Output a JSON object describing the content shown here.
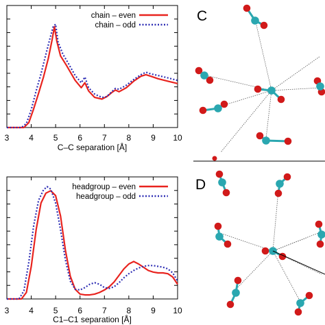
{
  "figure": {
    "panels": {
      "C": {
        "letter": "C"
      },
      "D": {
        "letter": "D"
      }
    },
    "colors": {
      "even": "#e8231e",
      "odd": "#2d2db4",
      "oxygen": "#d11a1a",
      "carbon": "#2aa7b0",
      "bond": "#555555"
    }
  },
  "chart_data": [
    {
      "type": "line",
      "xlabel": "C–C separation [Å]",
      "ylabel": "",
      "xlim": [
        3,
        10
      ],
      "x_ticks": [
        "3",
        "4",
        "5",
        "6",
        "7",
        "8",
        "9",
        "10"
      ],
      "ylim": [
        0,
        1.5
      ],
      "grid": false,
      "legend_position": "top-right",
      "series": [
        {
          "name": "chain – even",
          "style": "solid",
          "x": [
            3.0,
            3.7,
            3.9,
            4.1,
            4.3,
            4.5,
            4.7,
            4.85,
            4.95,
            5.05,
            5.2,
            5.45,
            5.8,
            6.05,
            6.2,
            6.35,
            6.6,
            6.9,
            7.1,
            7.3,
            7.45,
            7.6,
            7.9,
            8.2,
            8.5,
            8.7,
            8.9,
            9.2,
            9.6,
            10.0
          ],
          "y": [
            0.0,
            0.0,
            0.06,
            0.23,
            0.42,
            0.62,
            0.85,
            1.07,
            1.24,
            1.06,
            0.88,
            0.76,
            0.58,
            0.49,
            0.55,
            0.45,
            0.37,
            0.35,
            0.38,
            0.43,
            0.46,
            0.44,
            0.49,
            0.57,
            0.63,
            0.65,
            0.63,
            0.6,
            0.57,
            0.54
          ]
        },
        {
          "name": "chain – odd",
          "style": "dotted",
          "x": [
            3.0,
            3.6,
            3.8,
            4.0,
            4.2,
            4.4,
            4.6,
            4.8,
            4.9,
            5.0,
            5.1,
            5.3,
            5.5,
            5.8,
            6.05,
            6.2,
            6.35,
            6.6,
            6.9,
            7.1,
            7.3,
            7.45,
            7.6,
            7.9,
            8.2,
            8.5,
            8.7,
            8.9,
            9.2,
            9.6,
            10.0
          ],
          "y": [
            0.0,
            0.0,
            0.05,
            0.22,
            0.45,
            0.66,
            0.9,
            1.13,
            1.24,
            1.27,
            1.05,
            0.9,
            0.8,
            0.64,
            0.55,
            0.62,
            0.49,
            0.41,
            0.37,
            0.38,
            0.44,
            0.48,
            0.47,
            0.52,
            0.59,
            0.65,
            0.68,
            0.66,
            0.64,
            0.61,
            0.58
          ]
        }
      ]
    },
    {
      "type": "line",
      "xlabel": "C1–C1 separation [Å]",
      "ylabel": "",
      "xlim": [
        3,
        10
      ],
      "x_ticks": [
        "3",
        "4",
        "5",
        "6",
        "7",
        "8",
        "9",
        "10"
      ],
      "ylim": [
        0,
        1.5
      ],
      "grid": false,
      "legend_position": "top-right",
      "series": [
        {
          "name": "headgroup – even",
          "style": "solid",
          "x": [
            3.0,
            3.6,
            3.8,
            4.0,
            4.2,
            4.4,
            4.6,
            4.8,
            5.0,
            5.2,
            5.4,
            5.6,
            5.8,
            6.0,
            6.2,
            6.4,
            6.6,
            6.8,
            7.0,
            7.2,
            7.4,
            7.6,
            7.8,
            8.0,
            8.2,
            8.4,
            8.6,
            8.8,
            9.0,
            9.2,
            9.4,
            9.6,
            9.8,
            10.0
          ],
          "y": [
            0.0,
            0.0,
            0.08,
            0.4,
            0.85,
            1.18,
            1.3,
            1.33,
            1.27,
            1.02,
            0.6,
            0.28,
            0.12,
            0.06,
            0.05,
            0.05,
            0.06,
            0.08,
            0.11,
            0.15,
            0.21,
            0.29,
            0.37,
            0.43,
            0.46,
            0.43,
            0.39,
            0.35,
            0.33,
            0.32,
            0.32,
            0.31,
            0.27,
            0.18
          ]
        },
        {
          "name": "headgroup – odd",
          "style": "dotted",
          "x": [
            3.0,
            3.5,
            3.7,
            3.9,
            4.1,
            4.3,
            4.5,
            4.65,
            4.8,
            5.0,
            5.2,
            5.4,
            5.6,
            5.8,
            6.0,
            6.2,
            6.4,
            6.6,
            6.8,
            7.0,
            7.2,
            7.4,
            7.6,
            7.8,
            8.0,
            8.2,
            8.4,
            8.6,
            8.8,
            9.0,
            9.2,
            9.4,
            9.6,
            9.8,
            10.0
          ],
          "y": [
            0.0,
            0.0,
            0.1,
            0.45,
            0.9,
            1.21,
            1.34,
            1.38,
            1.35,
            1.18,
            0.85,
            0.48,
            0.22,
            0.12,
            0.11,
            0.14,
            0.18,
            0.2,
            0.18,
            0.14,
            0.13,
            0.15,
            0.2,
            0.26,
            0.31,
            0.35,
            0.38,
            0.4,
            0.41,
            0.41,
            0.4,
            0.39,
            0.37,
            0.32,
            0.22
          ]
        }
      ]
    }
  ]
}
